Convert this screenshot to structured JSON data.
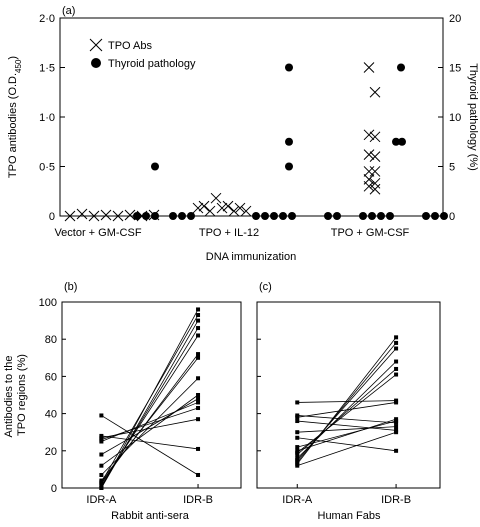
{
  "chart_data": [
    {
      "panel_label": "(a)",
      "type": "scatter",
      "xlabel": "DNA immunization",
      "ylabel_left": "TPO antibodies (O.D.",
      "ylabel_left_sub": "450",
      "ylabel_left_end": ")",
      "ylabel_right": "Thyroid pathology (%)",
      "ylim_left": [
        0,
        2
      ],
      "ylim_right": [
        0,
        20
      ],
      "yticks_left": [
        "0",
        "0·5",
        "1·0",
        "1·5",
        "2·0"
      ],
      "yticks_left_values": [
        0,
        0.5,
        1.0,
        1.5,
        2.0
      ],
      "yticks_right": [
        "0",
        "5",
        "10",
        "15",
        "20"
      ],
      "yticks_right_values": [
        0,
        5,
        10,
        15,
        20
      ],
      "categories": [
        "Vector + GM-CSF",
        "TPO + IL-12",
        "TPO + GM-CSF"
      ],
      "legend": [
        {
          "label": "TPO Abs",
          "marker": "x"
        },
        {
          "label": "Thyroid pathology",
          "marker": "dot"
        }
      ],
      "legend_placement": "top-left",
      "series": [
        {
          "name": "TPO Abs",
          "marker": "x",
          "axis": "left",
          "groups": [
            [
              0.0,
              0.02,
              0.0,
              0.01,
              0.0,
              0.01,
              0.0,
              0.01
            ],
            [
              0.08,
              0.1,
              0.05,
              0.18,
              0.08,
              0.1,
              0.05,
              0.08,
              0.05
            ],
            [
              1.5,
              1.25,
              0.82,
              0.8,
              0.62,
              0.6,
              0.45,
              0.45,
              0.37,
              0.33,
              0.3,
              0.27
            ]
          ]
        },
        {
          "name": "Thyroid pathology",
          "marker": "dot",
          "axis": "right",
          "groups": [
            [
              0,
              0,
              0,
              5,
              0,
              0,
              0
            ],
            [
              0,
              0,
              0,
              0,
              0,
              5,
              7.5,
              15,
              0,
              0
            ],
            [
              0,
              0,
              0,
              0,
              7.5,
              7.5,
              15,
              0,
              0,
              0
            ]
          ]
        }
      ]
    },
    {
      "panel_label": "(b)",
      "type": "line",
      "categories": [
        "IDR-A",
        "IDR-B"
      ],
      "xlabel": "Rabbit anti-sera",
      "ylabel": "Antibodies to the TPO regions (%)",
      "ylabel_lines": [
        "Antibodies to the",
        "TPO regions (%)"
      ],
      "ylim": [
        0,
        100
      ],
      "yticks": [
        "0",
        "20",
        "40",
        "60",
        "80",
        "100"
      ],
      "yticks_values": [
        0,
        20,
        40,
        60,
        80,
        100
      ],
      "pairs": [
        [
          39,
          7
        ],
        [
          28,
          21
        ],
        [
          27,
          37
        ],
        [
          26,
          43
        ],
        [
          25,
          46
        ],
        [
          18,
          48
        ],
        [
          12,
          50
        ],
        [
          7,
          59
        ],
        [
          4,
          70
        ],
        [
          3,
          72
        ],
        [
          2,
          82
        ],
        [
          1,
          86
        ],
        [
          0,
          90
        ],
        [
          0,
          96
        ],
        [
          3,
          93
        ]
      ]
    },
    {
      "panel_label": "(c)",
      "type": "line",
      "categories": [
        "IDR-A",
        "IDR-B"
      ],
      "xlabel": "Human Fabs",
      "ylim": [
        0,
        100
      ],
      "pairs": [
        [
          46,
          47
        ],
        [
          39,
          35
        ],
        [
          38,
          46
        ],
        [
          36,
          31
        ],
        [
          30,
          33
        ],
        [
          27,
          20
        ],
        [
          22,
          36
        ],
        [
          20,
          37
        ],
        [
          19,
          61
        ],
        [
          18,
          64
        ],
        [
          16,
          68
        ],
        [
          15,
          75
        ],
        [
          14,
          78
        ],
        [
          13,
          81
        ],
        [
          12,
          30
        ]
      ]
    }
  ]
}
